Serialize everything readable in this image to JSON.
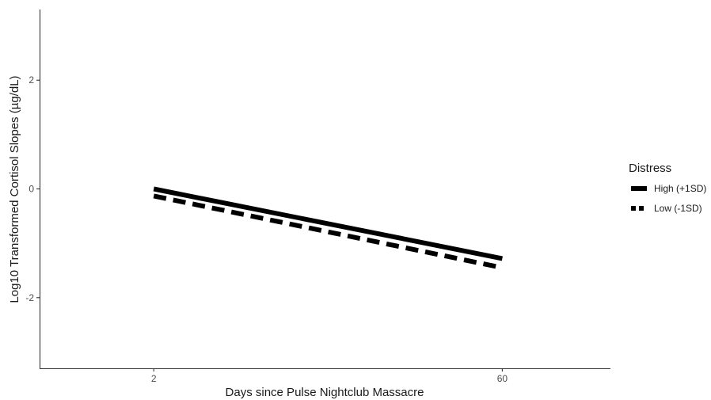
{
  "chart_data": {
    "type": "line",
    "title": "",
    "xlabel": "Days since Pulse Nightclub Massacre",
    "ylabel": "Log10 Transformed Cortisol Slopes (µg/dL)",
    "x_ticks": [
      2,
      60
    ],
    "y_ticks": [
      -2,
      0,
      2
    ],
    "xlim": [
      -17,
      78
    ],
    "ylim": [
      -3.3,
      3.3
    ],
    "grid": false,
    "legend": {
      "title": "Distress",
      "position": "right"
    },
    "series": [
      {
        "name": "High (+1SD)",
        "style": "solid",
        "color": "#000000",
        "x": [
          2,
          60
        ],
        "y": [
          0.0,
          -1.28
        ]
      },
      {
        "name": "Low (-1SD)",
        "style": "dashed",
        "color": "#000000",
        "x": [
          2,
          60
        ],
        "y": [
          -0.13,
          -1.45
        ]
      }
    ]
  }
}
